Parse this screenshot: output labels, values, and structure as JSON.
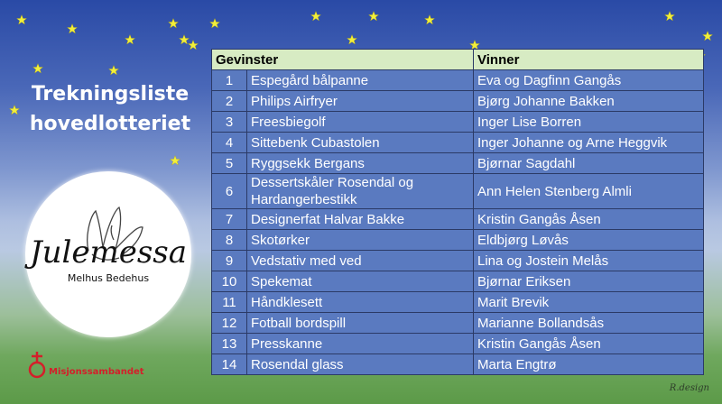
{
  "title_line1": "Trekningsliste",
  "title_line2": "hovedlotteriet",
  "logo": {
    "name": "Julemessa",
    "subtitle": "Melhus Bedehus"
  },
  "organization": "Misjonssambandet",
  "designer_mark": "R.design",
  "table": {
    "headers": [
      "Gevinster",
      "Vinner"
    ],
    "rows": [
      {
        "num": "1",
        "prize": "Espegård bålpanne",
        "winner": "Eva og Dagfinn Gangås"
      },
      {
        "num": "2",
        "prize": "Philips Airfryer",
        "winner": "Bjørg Johanne Bakken"
      },
      {
        "num": "3",
        "prize": "Freesbiegolf",
        "winner": "Inger Lise Borren"
      },
      {
        "num": "4",
        "prize": "Sittebenk Cubastolen",
        "winner": "Inger Johanne og Arne Heggvik"
      },
      {
        "num": "5",
        "prize": "Ryggsekk Bergans",
        "winner": "Bjørnar Sagdahl"
      },
      {
        "num": "6",
        "prize": "Dessertskåler Rosendal og Hardangerbestikk",
        "winner": "Ann Helen Stenberg Almli"
      },
      {
        "num": "7",
        "prize": "Designerfat Halvar Bakke",
        "winner": "Kristin Gangås Åsen"
      },
      {
        "num": "8",
        "prize": "Skotørker",
        "winner": "Eldbjørg Løvås"
      },
      {
        "num": "9",
        "prize": "Vedstativ med ved",
        "winner": "Lina og Jostein Melås"
      },
      {
        "num": "10",
        "prize": "Spekemat",
        "winner": "Bjørnar Eriksen"
      },
      {
        "num": "11",
        "prize": "Håndklesett",
        "winner": "Marit Brevik"
      },
      {
        "num": "12",
        "prize": "Fotball bordspill",
        "winner": "Marianne Bollandsås"
      },
      {
        "num": "13",
        "prize": "Presskanne",
        "winner": "Kristin Gangås Åsen"
      },
      {
        "num": "14",
        "prize": "Rosendal glass",
        "winner": "Marta Engtrø"
      }
    ]
  },
  "colors": {
    "header_bg": "#d7ebc3",
    "row_bg": "#5a7ac0",
    "star": "#f2ef3a",
    "brand_red": "#d41f2a"
  }
}
